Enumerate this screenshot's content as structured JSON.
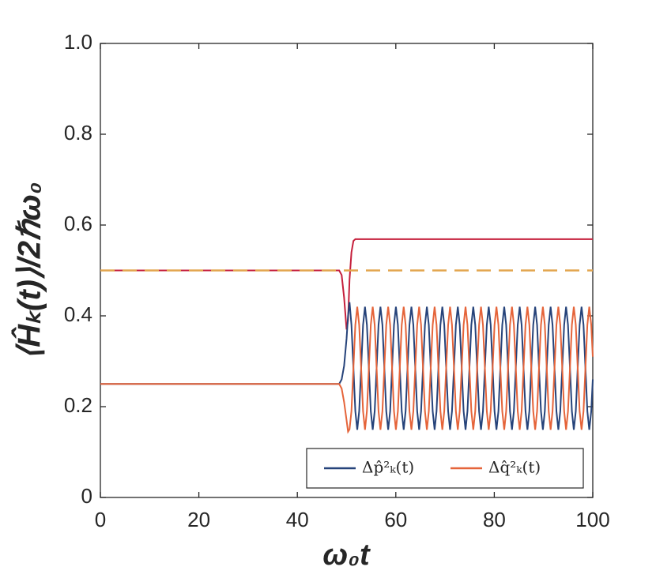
{
  "chart_data": {
    "type": "line",
    "x_label": "ω₀t",
    "y_label": "⟨Ĥₖ(t)⟩/2ℏω₀",
    "xlim": [
      0,
      100
    ],
    "xticks": [
      0,
      20,
      40,
      60,
      80,
      100
    ],
    "ylim": [
      0,
      1
    ],
    "yticks": [
      0,
      0.2,
      0.4,
      0.6,
      0.8,
      {
        "value": 1,
        "label": "1.0"
      }
    ],
    "legend": "lower right",
    "x": [
      0,
      48,
      48.5,
      49,
      49.5,
      50,
      50.3,
      50.6,
      50.99,
      51.39,
      51.78,
      52.17,
      52.56,
      52.96,
      53.35,
      53.74,
      54.13,
      54.53,
      54.92,
      55.31,
      55.71,
      56.1,
      56.49,
      56.88,
      57.28,
      57.67,
      58.06,
      58.45,
      58.85,
      59.24,
      59.63,
      60.02,
      60.42,
      60.81,
      61.2,
      61.6,
      61.99,
      62.38,
      62.77,
      63.17,
      63.56,
      63.95,
      64.34,
      64.74,
      65.13,
      65.52,
      65.92,
      66.31,
      66.7,
      67.09,
      67.49,
      67.88,
      68.27,
      68.66,
      69.06,
      69.45,
      69.84,
      70.23,
      70.63,
      71.02,
      71.41,
      71.81,
      72.2,
      72.59,
      72.98,
      73.38,
      73.77,
      74.16,
      74.55,
      74.95,
      75.34,
      75.73,
      76.13,
      76.52,
      76.91,
      77.3,
      77.7,
      78.09,
      78.48,
      78.87,
      79.27,
      79.66,
      80.05,
      80.44,
      80.84,
      81.23,
      81.62,
      82.02,
      82.41,
      82.8,
      83.19,
      83.59,
      83.98,
      84.37,
      84.76,
      85.16,
      85.55,
      85.94,
      86.34,
      86.73,
      87.12,
      87.51,
      87.91,
      88.3,
      88.69,
      89.08,
      89.48,
      89.87,
      90.26,
      90.65,
      91.05,
      91.44,
      91.83,
      92.23,
      92.62,
      93.01,
      93.4,
      93.8,
      94.19,
      94.58,
      94.97,
      95.37,
      95.76,
      96.15,
      96.55,
      96.94,
      97.33,
      97.72,
      98.12,
      98.51,
      98.9,
      99.29,
      99.69,
      100
    ],
    "series": [
      {
        "color": "#c51f3c",
        "x": [
          0,
          48,
          48.5,
          49,
          49.5,
          50,
          50.3,
          50.6,
          50.99,
          51.39,
          51.78,
          100
        ],
        "values": [
          0.5,
          0.5,
          0.5,
          0.49,
          0.44,
          0.37,
          0.39,
          0.48,
          0.54,
          0.565,
          0.569,
          0.569
        ]
      },
      {
        "color": "#e3a54f",
        "dash": true,
        "x": [
          0,
          100
        ],
        "values": [
          0.5,
          0.5
        ]
      },
      {
        "name": "Δp̂²ₖ(t)",
        "color": "#26437a",
        "values": [
          0.25,
          0.25,
          0.25,
          0.26,
          0.29,
          0.35,
          0.4,
          0.43,
          0.38,
          0.285,
          0.19,
          0.149,
          0.19,
          0.285,
          0.38,
          0.42,
          0.38,
          0.285,
          0.19,
          0.149,
          0.19,
          0.285,
          0.38,
          0.42,
          0.38,
          0.285,
          0.19,
          0.149,
          0.19,
          0.285,
          0.38,
          0.42,
          0.38,
          0.285,
          0.19,
          0.149,
          0.19,
          0.285,
          0.38,
          0.42,
          0.38,
          0.285,
          0.19,
          0.149,
          0.19,
          0.285,
          0.38,
          0.42,
          0.38,
          0.285,
          0.19,
          0.149,
          0.19,
          0.285,
          0.38,
          0.42,
          0.38,
          0.285,
          0.19,
          0.149,
          0.19,
          0.285,
          0.38,
          0.42,
          0.38,
          0.285,
          0.19,
          0.149,
          0.19,
          0.285,
          0.38,
          0.42,
          0.38,
          0.285,
          0.19,
          0.149,
          0.19,
          0.285,
          0.38,
          0.42,
          0.38,
          0.285,
          0.19,
          0.149,
          0.19,
          0.285,
          0.38,
          0.42,
          0.38,
          0.285,
          0.19,
          0.149,
          0.19,
          0.285,
          0.38,
          0.42,
          0.38,
          0.285,
          0.19,
          0.149,
          0.19,
          0.285,
          0.38,
          0.42,
          0.38,
          0.285,
          0.19,
          0.149,
          0.19,
          0.285,
          0.38,
          0.42,
          0.38,
          0.285,
          0.19,
          0.149,
          0.19,
          0.285,
          0.38,
          0.42,
          0.38,
          0.285,
          0.19,
          0.149,
          0.19,
          0.285,
          0.38,
          0.42,
          0.38,
          0.285,
          0.19,
          0.149,
          0.19,
          0.26
        ]
      },
      {
        "name": "Δq̂²ₖ(t)",
        "color": "#e5643a",
        "values": [
          0.25,
          0.25,
          0.25,
          0.24,
          0.21,
          0.17,
          0.145,
          0.15,
          0.19,
          0.285,
          0.38,
          0.42,
          0.38,
          0.285,
          0.19,
          0.149,
          0.19,
          0.285,
          0.38,
          0.42,
          0.38,
          0.285,
          0.19,
          0.149,
          0.19,
          0.285,
          0.38,
          0.42,
          0.38,
          0.285,
          0.19,
          0.149,
          0.19,
          0.285,
          0.38,
          0.42,
          0.38,
          0.285,
          0.19,
          0.149,
          0.19,
          0.285,
          0.38,
          0.42,
          0.38,
          0.285,
          0.19,
          0.149,
          0.19,
          0.285,
          0.38,
          0.42,
          0.38,
          0.285,
          0.19,
          0.149,
          0.19,
          0.285,
          0.38,
          0.42,
          0.38,
          0.285,
          0.19,
          0.149,
          0.19,
          0.285,
          0.38,
          0.42,
          0.38,
          0.285,
          0.19,
          0.149,
          0.19,
          0.285,
          0.38,
          0.42,
          0.38,
          0.285,
          0.19,
          0.149,
          0.19,
          0.285,
          0.38,
          0.42,
          0.38,
          0.285,
          0.19,
          0.149,
          0.19,
          0.285,
          0.38,
          0.42,
          0.38,
          0.285,
          0.19,
          0.149,
          0.19,
          0.285,
          0.38,
          0.42,
          0.38,
          0.285,
          0.19,
          0.149,
          0.19,
          0.285,
          0.38,
          0.42,
          0.38,
          0.285,
          0.19,
          0.149,
          0.19,
          0.285,
          0.38,
          0.42,
          0.38,
          0.285,
          0.19,
          0.149,
          0.19,
          0.285,
          0.38,
          0.42,
          0.38,
          0.285,
          0.19,
          0.149,
          0.19,
          0.285,
          0.38,
          0.42,
          0.38,
          0.31
        ]
      }
    ]
  }
}
